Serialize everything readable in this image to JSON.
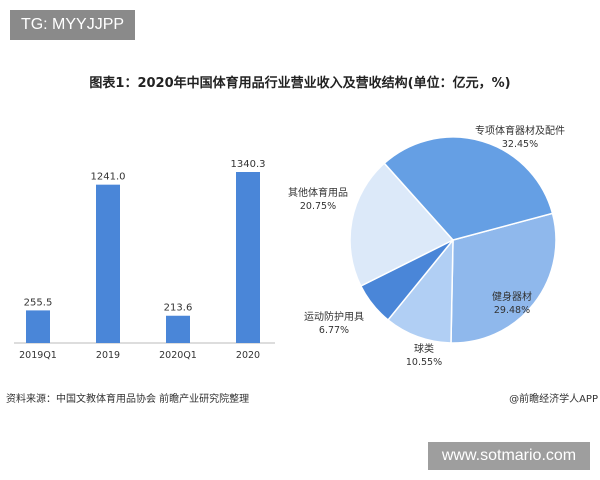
{
  "watermark_label": "TG: MYYJJPP",
  "site_label": "www.sotmario.com",
  "footer": {
    "source": "资料来源：中国文教体育用品协会 前瞻产业研究院整理",
    "credit": "@前瞻经济学人APP"
  },
  "colors": {
    "bar": "#4a86d8"
  },
  "chart_data": [
    {
      "type": "bar",
      "title": "图表1：2020年中国体育用品行业营业收入及营收结构(单位：亿元，%)",
      "categories": [
        "2019Q1",
        "2019",
        "2020Q1",
        "2020"
      ],
      "values": [
        255.5,
        1241.0,
        213.6,
        1340.3
      ],
      "value_labels": [
        "255.5",
        "1241.0",
        "213.6",
        "1340.3"
      ],
      "ylim": [
        0,
        1340.3
      ],
      "grid": false,
      "color": "#4a86d8"
    },
    {
      "type": "pie",
      "slices": [
        {
          "label": "健身器材",
          "value": 29.48,
          "pct": "29.48%",
          "color": "#8fb8ec"
        },
        {
          "label": "球类",
          "value": 10.55,
          "pct": "10.55%",
          "color": "#b1cff4"
        },
        {
          "label": "运动防护用具",
          "value": 6.77,
          "pct": "6.77%",
          "color": "#4a86d8"
        },
        {
          "label": "其他体育用品",
          "value": 20.75,
          "pct": "20.75%",
          "color": "#dce9f9"
        },
        {
          "label": "专项体育器材及配件",
          "value": 32.45,
          "pct": "32.45%",
          "color": "#659fe4"
        }
      ]
    }
  ]
}
